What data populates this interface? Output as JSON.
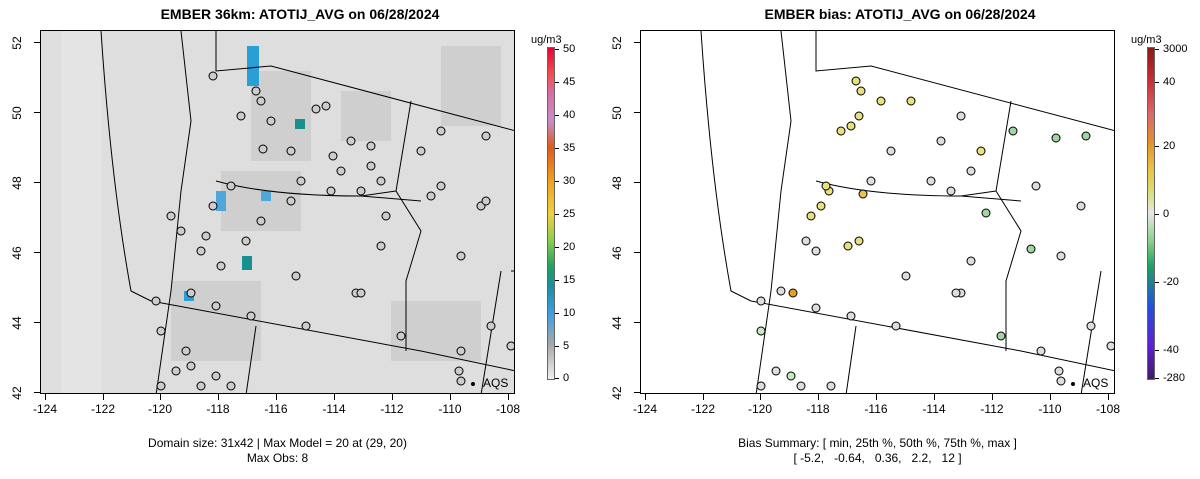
{
  "left": {
    "title": "EMBER 36km: ATOTIJ_AVG on 06/28/2024",
    "caption_line1": "Domain size: 31x42 | Max Model = 20 at (29, 20)",
    "caption_line2": "Max Obs: 8",
    "legend_unit": "ug/m3",
    "legend_labels": [
      "50",
      "45",
      "40",
      "35",
      "30",
      "25",
      "20",
      "15",
      "10",
      "5",
      "0"
    ],
    "aqs_label": "AQS"
  },
  "right": {
    "title": "EMBER bias: ATOTIJ_AVG on 06/28/2024",
    "caption_line1": "Bias Summary: [ min, 25th %, 50th %, 75th %, max ]",
    "caption_line2": "[ -5.2,   -0.64,   0.36,   2.2,   12 ]",
    "legend_unit": "ug/m3",
    "legend_labels": [
      "3000",
      "40",
      "20",
      "0",
      "-20",
      "-40",
      "-280"
    ],
    "aqs_label": "AQS"
  },
  "axes": {
    "x_ticks": [
      "-124",
      "-122",
      "-120",
      "-118",
      "-116",
      "-114",
      "-112",
      "-110",
      "-108"
    ],
    "y_ticks": [
      "42",
      "44",
      "46",
      "48",
      "50",
      "52"
    ],
    "xlim": [
      -124.5,
      -107.8
    ],
    "ylim": [
      41.9,
      52.3
    ]
  },
  "colors": {
    "model_background": "#dddddd",
    "station_fill": "#cccccc",
    "highlight_blue": "#2a9fd6",
    "highlight_teal": "#1a8f8f",
    "bias_yellow": "#e8e07a",
    "bias_green": "#9fd7a0"
  }
}
